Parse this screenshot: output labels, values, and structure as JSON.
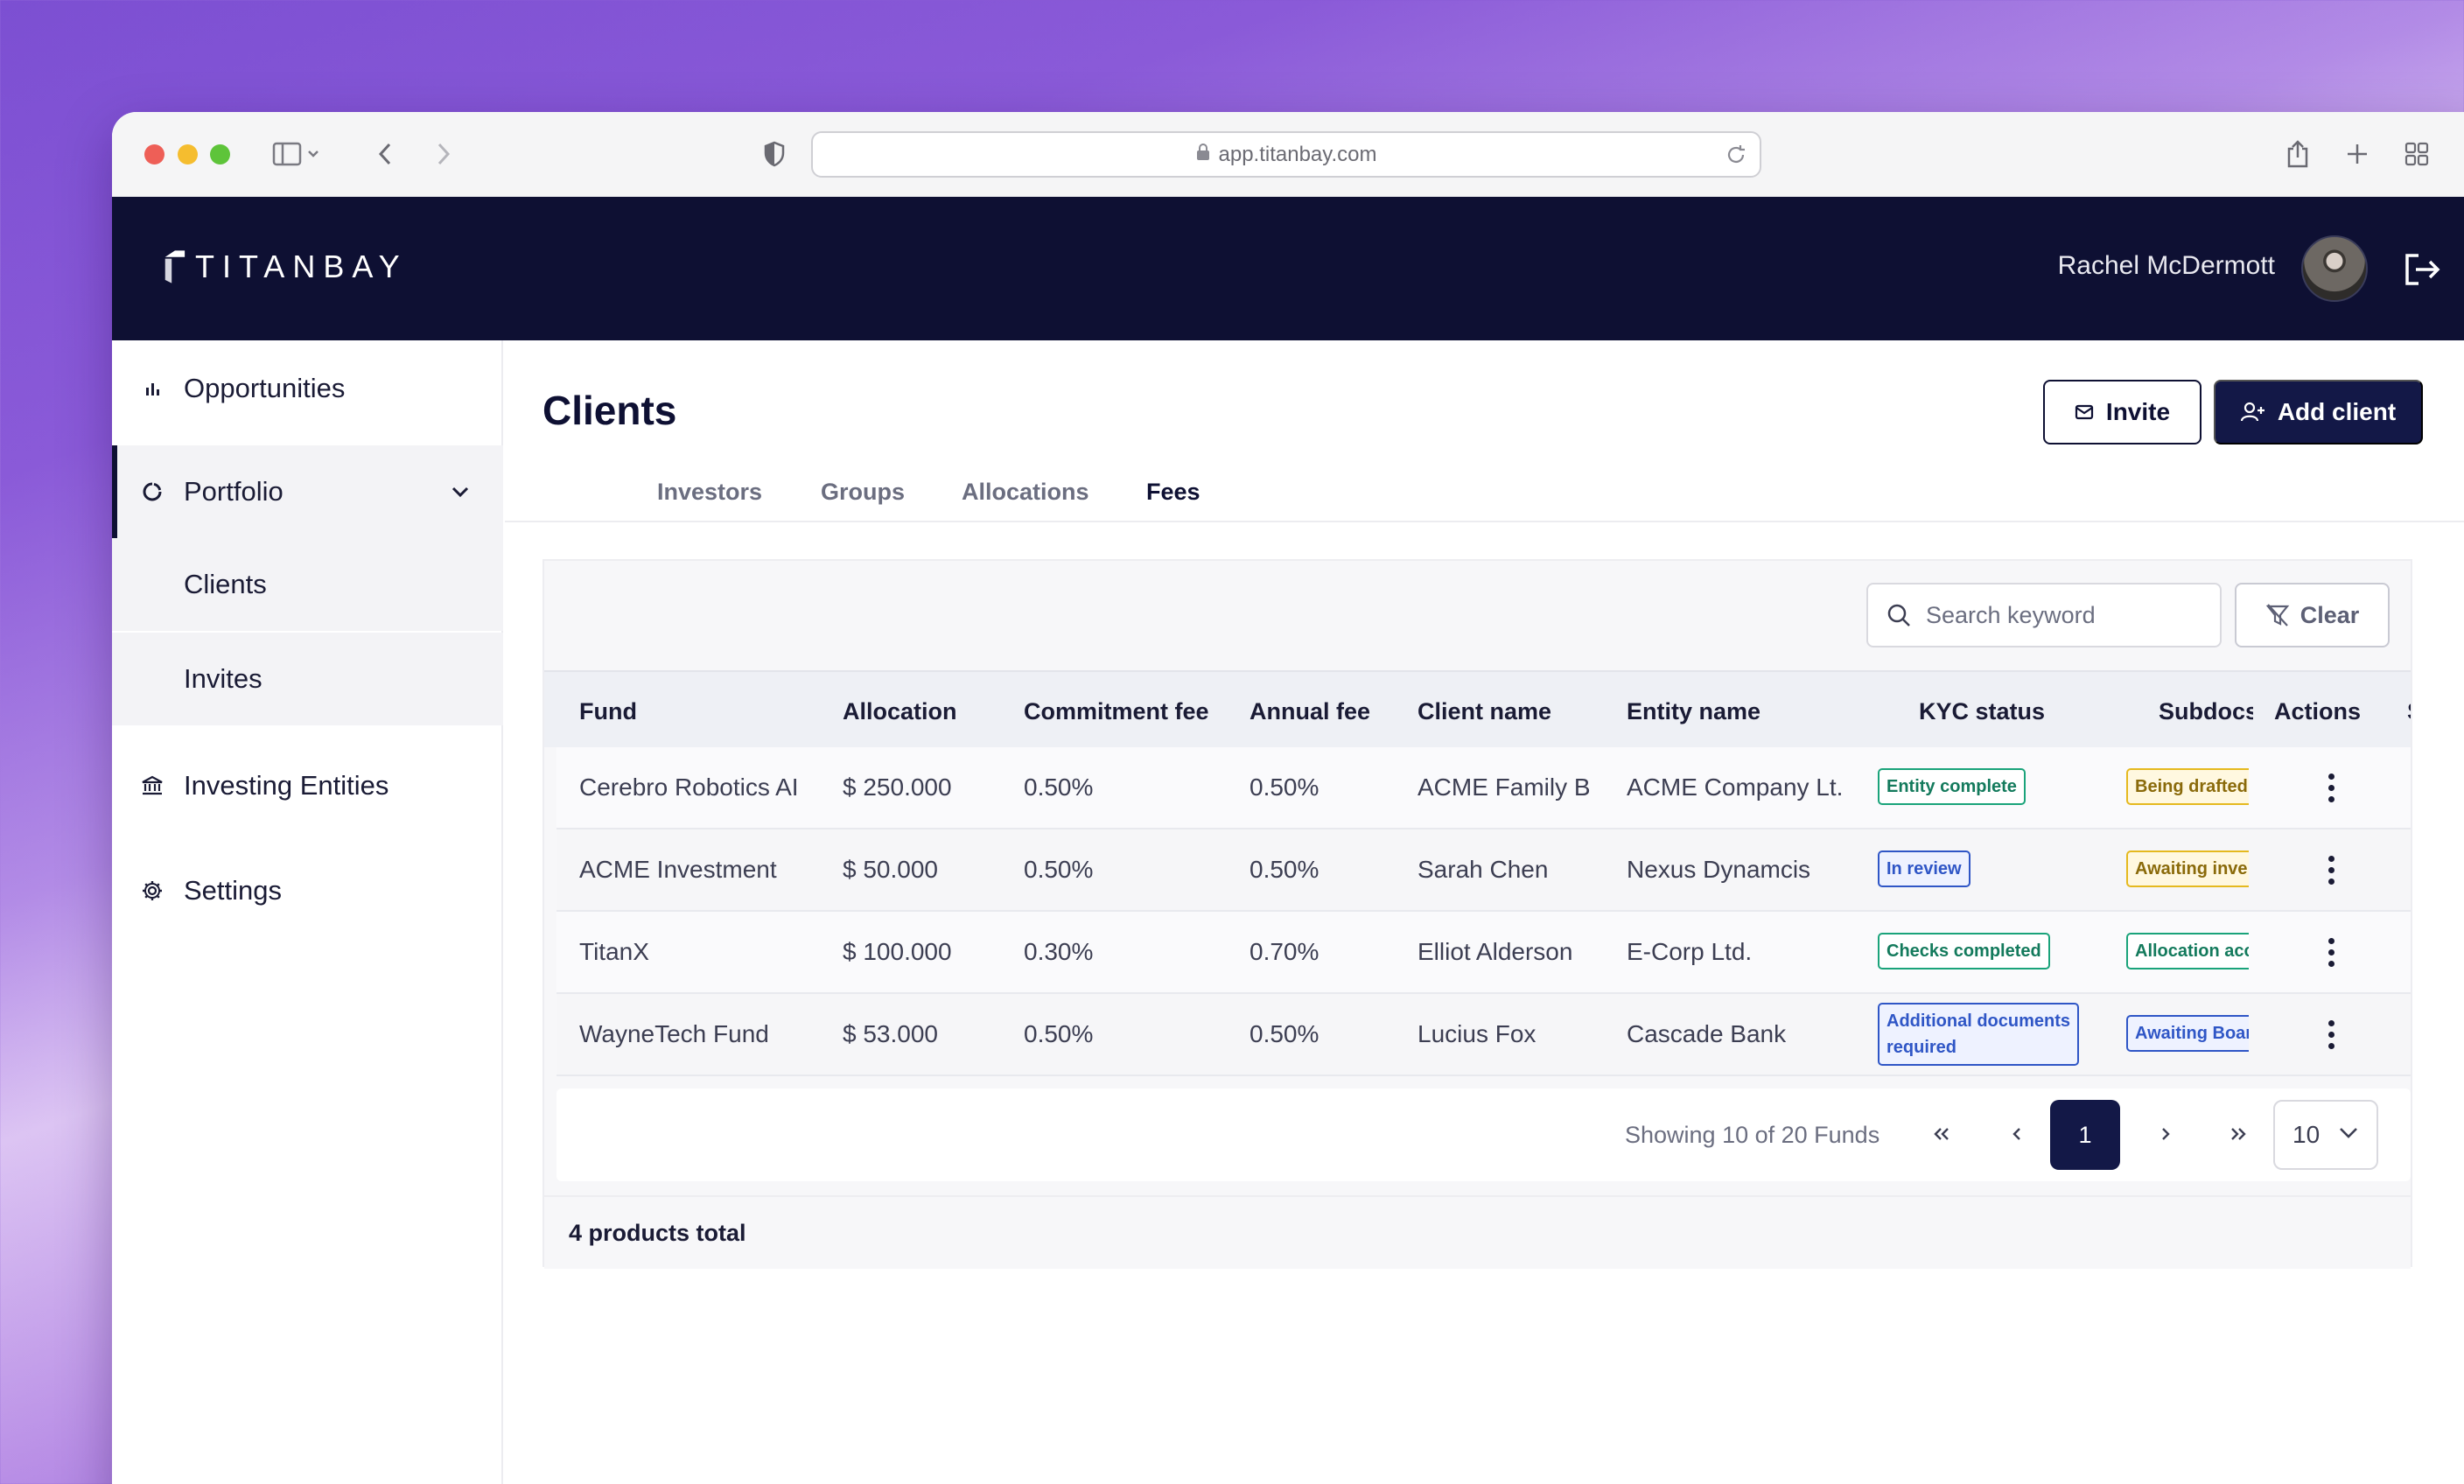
{
  "browser": {
    "url": "app.titanbay.com"
  },
  "header": {
    "brand": "TITANBAY",
    "user_name": "Rachel McDermott"
  },
  "sidebar": {
    "items": [
      {
        "label": "Opportunities",
        "icon": "bar-chart-icon"
      },
      {
        "label": "Portfolio",
        "icon": "donut-icon",
        "active": true,
        "expanded": true
      },
      {
        "label": "Investing Entities",
        "icon": "bank-icon"
      },
      {
        "label": "Settings",
        "icon": "gear-icon"
      }
    ],
    "sub_items": [
      {
        "label": "Clients"
      },
      {
        "label": "Invites"
      }
    ]
  },
  "page": {
    "title": "Clients",
    "invite_label": "Invite",
    "add_client_label": "Add client",
    "tabs": [
      {
        "label": "Investors"
      },
      {
        "label": "Groups"
      },
      {
        "label": "Allocations"
      },
      {
        "label": "Fees",
        "active": true
      }
    ]
  },
  "filters": {
    "search_placeholder": "Search keyword",
    "clear_label": "Clear"
  },
  "table": {
    "columns": [
      "Fund",
      "Allocation",
      "Commitment fee",
      "Annual fee",
      "Client name",
      "Entity name",
      "KYC status",
      "Subdocs",
      "Actions",
      "S"
    ],
    "rows": [
      {
        "fund": "Cerebro Robotics AI",
        "allocation": "$ 250.000",
        "commitment_fee": "0.50%",
        "annual_fee": "0.50%",
        "client_name": "ACME Family B",
        "entity_name": "ACME Company Lt.",
        "kyc_status": "Entity complete",
        "subdocs": "Being drafted"
      },
      {
        "fund": "ACME Investment",
        "allocation": "$ 50.000",
        "commitment_fee": "0.50%",
        "annual_fee": "0.50%",
        "client_name": "Sarah Chen",
        "entity_name": "Nexus Dynamcis",
        "kyc_status": "In review",
        "subdocs": "Awaiting inve"
      },
      {
        "fund": "TitanX",
        "allocation": "$ 100.000",
        "commitment_fee": "0.30%",
        "annual_fee": "0.70%",
        "client_name": "Elliot Alderson",
        "entity_name": "E-Corp Ltd.",
        "kyc_status": "Checks completed",
        "subdocs": "Allocation acc"
      },
      {
        "fund": "WayneTech Fund",
        "allocation": "$ 53.000",
        "commitment_fee": "0.50%",
        "annual_fee": "0.50%",
        "client_name": "Lucius Fox",
        "entity_name": "Cascade Bank",
        "kyc_status": "Additional documents required",
        "subdocs": "Awaiting Boar"
      }
    ]
  },
  "pagination": {
    "info": "Showing 10 of 20 Funds",
    "current_page": "1",
    "per_page": "10"
  },
  "footer": {
    "total": "4 products total"
  },
  "colors": {
    "navy": "#0e1033",
    "button_navy": "#131847",
    "badge_green": "#1aa37a",
    "badge_blue": "#2f56c6",
    "badge_yellow": "#e5b91f"
  }
}
